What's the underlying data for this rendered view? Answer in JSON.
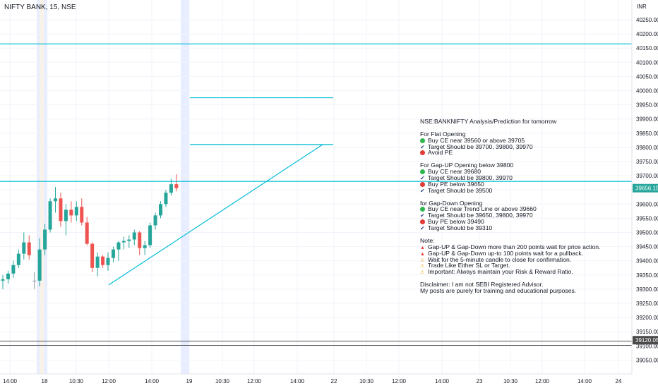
{
  "header": {
    "title": "NIFTY BANK, 15, NSE",
    "currency": "INR"
  },
  "colors": {
    "up": "#26a69a",
    "down": "#ef5350",
    "neutral": "#8f98a6",
    "line": "#00bcd4",
    "pale_line": "#4a4a4a",
    "highlight": "#e8eeff",
    "highlight_orange": "#fff3e0",
    "price_badge": "#26a69a"
  },
  "chart_data": {
    "type": "candlestick",
    "title": "NIFTY BANK, 15, NSE",
    "y_unit": "INR",
    "ylim": [
      39040,
      40290
    ],
    "ylabels": [
      "40250.00",
      "40200.00",
      "40150.00",
      "40100.00",
      "40050.00",
      "40000.00",
      "39950.00",
      "39900.00",
      "39850.00",
      "39800.00",
      "39750.00",
      "39700.00",
      "39650.00",
      "39600.00",
      "39550.00",
      "39500.00",
      "39450.00",
      "39400.00",
      "39350.00",
      "39300.00",
      "39250.00",
      "39200.00",
      "39150.00",
      "39100.00",
      "39050.00"
    ],
    "xlabels": [
      "14:00",
      "18",
      "10:30",
      "12:00",
      "14:00",
      "19",
      "10:30",
      "12:00",
      "14:00",
      "22",
      "10:30",
      "12:00",
      "14:00",
      "23",
      "10:30",
      "12:00",
      "14:00",
      "24"
    ],
    "candles": [
      {
        "o": 39330,
        "h": 39350,
        "l": 39300,
        "c": 39335
      },
      {
        "o": 39335,
        "h": 39365,
        "l": 39320,
        "c": 39355
      },
      {
        "o": 39355,
        "h": 39400,
        "l": 39340,
        "c": 39385
      },
      {
        "o": 39385,
        "h": 39440,
        "l": 39375,
        "c": 39425
      },
      {
        "o": 39425,
        "h": 39500,
        "l": 39405,
        "c": 39465
      },
      {
        "o": 39465,
        "h": 39490,
        "l": 39405,
        "c": 39420
      },
      {
        "o": 39330,
        "h": 39360,
        "l": 39300,
        "c": 39330
      },
      {
        "o": 39330,
        "h": 39480,
        "l": 39310,
        "c": 39440
      },
      {
        "o": 39440,
        "h": 39530,
        "l": 39420,
        "c": 39510
      },
      {
        "o": 39510,
        "h": 39620,
        "l": 39500,
        "c": 39610
      },
      {
        "o": 39610,
        "h": 39660,
        "l": 39570,
        "c": 39620
      },
      {
        "o": 39620,
        "h": 39640,
        "l": 39520,
        "c": 39540
      },
      {
        "o": 39540,
        "h": 39600,
        "l": 39490,
        "c": 39580
      },
      {
        "o": 39580,
        "h": 39610,
        "l": 39535,
        "c": 39560
      },
      {
        "o": 39560,
        "h": 39610,
        "l": 39540,
        "c": 39590
      },
      {
        "o": 39590,
        "h": 39620,
        "l": 39525,
        "c": 39535
      },
      {
        "o": 39535,
        "h": 39555,
        "l": 39455,
        "c": 39460
      },
      {
        "o": 39460,
        "h": 39465,
        "l": 39360,
        "c": 39375
      },
      {
        "o": 39375,
        "h": 39430,
        "l": 39345,
        "c": 39415
      },
      {
        "o": 39415,
        "h": 39420,
        "l": 39375,
        "c": 39385
      },
      {
        "o": 39385,
        "h": 39430,
        "l": 39365,
        "c": 39410
      },
      {
        "o": 39410,
        "h": 39450,
        "l": 39395,
        "c": 39440
      },
      {
        "o": 39440,
        "h": 39470,
        "l": 39400,
        "c": 39465
      },
      {
        "o": 39465,
        "h": 39485,
        "l": 39440,
        "c": 39470
      },
      {
        "o": 39470,
        "h": 39490,
        "l": 39445,
        "c": 39475
      },
      {
        "o": 39475,
        "h": 39510,
        "l": 39455,
        "c": 39500
      },
      {
        "o": 39500,
        "h": 39505,
        "l": 39420,
        "c": 39445
      },
      {
        "o": 39445,
        "h": 39470,
        "l": 39420,
        "c": 39455
      },
      {
        "o": 39455,
        "h": 39535,
        "l": 39445,
        "c": 39525
      },
      {
        "o": 39525,
        "h": 39570,
        "l": 39510,
        "c": 39560
      },
      {
        "o": 39560,
        "h": 39610,
        "l": 39550,
        "c": 39600
      },
      {
        "o": 39600,
        "h": 39650,
        "l": 39590,
        "c": 39640
      },
      {
        "o": 39640,
        "h": 39690,
        "l": 39630,
        "c": 39670
      },
      {
        "o": 39670,
        "h": 39705,
        "l": 39645,
        "c": 39656.15
      }
    ],
    "lines": [
      {
        "name": "",
        "y": 40165
      },
      {
        "name": "",
        "y": 39680
      },
      {
        "name": "",
        "y": 39975
      },
      {
        "name": "",
        "y": 39810
      }
    ],
    "pale_lines": [
      39117,
      39102
    ],
    "trend_line": [
      {
        "x": "12:00",
        "y": 39315
      },
      {
        "x": "22",
        "y": 39810
      }
    ],
    "last_price": "39656.15",
    "low_line_label": "39120.05",
    "grid": true
  },
  "analysis_note": {
    "title": "NSE:BANKNIFTY Analysis/Prediction for tomorrow",
    "flat": {
      "heading": "For Flat Opening",
      "items": [
        {
          "icon": "green-dot",
          "text": "Buy CE near 39560 or above 39705"
        },
        {
          "icon": "check",
          "text": "Target Should be 39700, 39800, 39970"
        },
        {
          "icon": "red-dot",
          "text": "Avoid PE"
        }
      ]
    },
    "gap_up": {
      "heading": "For Gap-UP Opening below 39800",
      "items": [
        {
          "icon": "green-dot",
          "text": "Buy CE near 39680"
        },
        {
          "icon": "check",
          "text": "Target Should be 39800, 39970"
        },
        {
          "icon": "red-dot",
          "text": "Buy PE below 39650"
        },
        {
          "icon": "check",
          "text": "Target Should be 39500"
        }
      ]
    },
    "gap_down": {
      "heading": "for Gap-Down Opening",
      "items": [
        {
          "icon": "green-dot",
          "text": "Buy CE near Trend Line or above 39660"
        },
        {
          "icon": "check",
          "text": "Target Should be 39650, 39800, 39970"
        },
        {
          "icon": "red-dot",
          "text": "Buy PE below 39490"
        },
        {
          "icon": "check",
          "text": "Target Should be 39310"
        }
      ]
    },
    "note": {
      "heading": "Note:",
      "items": [
        {
          "icon": "red-triangle",
          "text": "Gap-UP & Gap-Down more than 200 points wait for price action."
        },
        {
          "icon": "red-triangle",
          "text": "Gap-UP & Gap-Down up-to 100 points wait for a pullback."
        },
        {
          "icon": "warning",
          "text": "Wait for the 5-minute candle to close for confirmation."
        },
        {
          "icon": "warning",
          "text": "Trade Like Either SL or Target."
        },
        {
          "icon": "warning",
          "text": "Important: Always maintain your Risk & Reward Ratio."
        }
      ]
    },
    "disclaimer": [
      "Disclaimer: I am not SEBI Registered Advisor.",
      "My posts are purely for training and educational purposes."
    ]
  }
}
